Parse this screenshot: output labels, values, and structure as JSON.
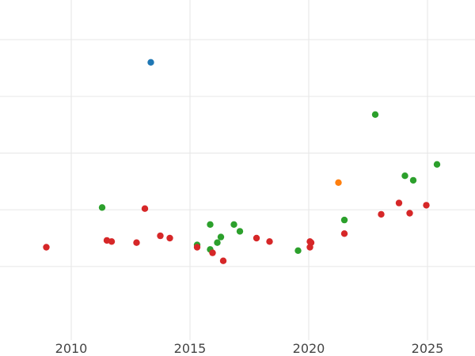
{
  "chart_data": {
    "type": "scatter",
    "title": "",
    "xlabel": "",
    "ylabel": "",
    "xlim": [
      2007.0,
      2027.0
    ],
    "ylim": [
      -0.15,
      2.85
    ],
    "grid": true,
    "x_ticks": [
      2010,
      2015,
      2020,
      2025
    ],
    "x_tick_labels": [
      "2010",
      "2015",
      "2020",
      "2025"
    ],
    "y_gridlines": [
      0.5,
      1.0,
      1.5,
      2.0,
      2.5
    ],
    "series": [
      {
        "color": "#1f77b4",
        "points": [
          [
            2013.35,
            2.3
          ]
        ]
      },
      {
        "color": "#ff7f0e",
        "points": [
          [
            2021.25,
            1.24
          ]
        ]
      },
      {
        "color": "#2ca02c",
        "points": [
          [
            2011.3,
            1.02
          ],
          [
            2015.3,
            0.69
          ],
          [
            2015.85,
            0.65
          ],
          [
            2015.85,
            0.87
          ],
          [
            2016.15,
            0.71
          ],
          [
            2016.3,
            0.76
          ],
          [
            2016.85,
            0.87
          ],
          [
            2017.1,
            0.81
          ],
          [
            2019.55,
            0.64
          ],
          [
            2021.5,
            0.91
          ],
          [
            2022.8,
            1.84
          ],
          [
            2024.05,
            1.3
          ],
          [
            2024.4,
            1.26
          ],
          [
            2025.4,
            1.4
          ]
        ]
      },
      {
        "color": "#d62728",
        "points": [
          [
            2008.95,
            0.67
          ],
          [
            2011.5,
            0.73
          ],
          [
            2011.7,
            0.72
          ],
          [
            2012.75,
            0.71
          ],
          [
            2013.1,
            1.01
          ],
          [
            2013.75,
            0.77
          ],
          [
            2014.15,
            0.75
          ],
          [
            2015.3,
            0.67
          ],
          [
            2015.95,
            0.62
          ],
          [
            2016.4,
            0.55
          ],
          [
            2017.8,
            0.75
          ],
          [
            2018.35,
            0.72
          ],
          [
            2020.05,
            0.72
          ],
          [
            2020.1,
            0.71
          ],
          [
            2020.05,
            0.67
          ],
          [
            2021.5,
            0.79
          ],
          [
            2023.05,
            0.96
          ],
          [
            2023.8,
            1.06
          ],
          [
            2024.25,
            0.97
          ],
          [
            2024.95,
            1.04
          ]
        ]
      }
    ]
  }
}
